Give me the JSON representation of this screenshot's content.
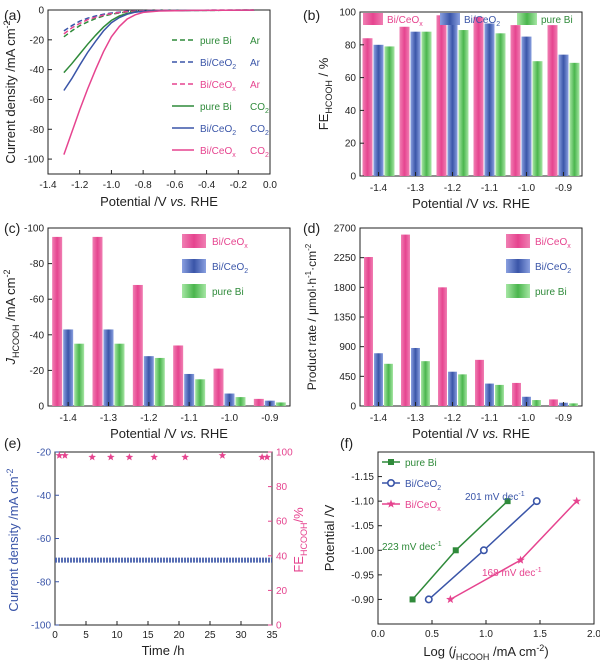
{
  "colors": {
    "bi": "#2f8a3a",
    "bice2": "#3a55a8",
    "bicex": "#e6448f",
    "fe": "#e6448f",
    "axis": "#222222",
    "gray": "#c8c8c8"
  },
  "chart_data": [
    {
      "panel": "(a)",
      "type": "line",
      "xlabel_parts": [
        "Potential /V ",
        "vs.",
        " RHE"
      ],
      "ylabel_parts": [
        "Current density /mA cm",
        "-2"
      ],
      "xlim": [
        -1.4,
        0.0
      ],
      "ylim": [
        -110,
        0
      ],
      "xticks": [
        -1.4,
        -1.2,
        -1.0,
        -0.8,
        -0.6,
        -0.4,
        -0.2,
        0.0
      ],
      "xtick_labels": [
        "-1.4",
        "-1.2",
        "-1.0",
        "-0.8",
        "-0.6",
        "-0.4",
        "-0.2",
        "0.0"
      ],
      "yticks": [
        -100,
        -80,
        -60,
        -40,
        -20,
        0
      ],
      "ytick_labels": [
        "-100",
        "-80",
        "-60",
        "-40",
        "-20",
        "0"
      ],
      "legend_position": "right",
      "series": [
        {
          "name": "pure Bi",
          "gas": "Ar",
          "style": "dashed",
          "color_key": "bi",
          "legend_label": "pure Bi Ar",
          "x": [
            -1.3,
            -1.25,
            -1.2,
            -1.15,
            -1.1,
            -1.05,
            -1.0,
            -0.9,
            -0.8,
            -0.7,
            -0.5,
            -0.3,
            -0.1
          ],
          "y": [
            -18,
            -14,
            -10.5,
            -8,
            -5.8,
            -4,
            -2.8,
            -1.2,
            -0.6,
            -0.4,
            -0.3,
            -0.2,
            -0.1
          ]
        },
        {
          "name": "Bi/CeO2",
          "gas": "Ar",
          "style": "dashed",
          "color_key": "bice2",
          "legend_label": "Bi/CeO2 Ar",
          "x": [
            -1.3,
            -1.25,
            -1.2,
            -1.15,
            -1.1,
            -1.05,
            -1.0,
            -0.9,
            -0.8,
            -0.7,
            -0.5,
            -0.3,
            -0.1
          ],
          "y": [
            -14,
            -10.5,
            -7.5,
            -5.5,
            -4,
            -2.8,
            -2,
            -0.9,
            -0.5,
            -0.3,
            -0.2,
            -0.1,
            -0.1
          ]
        },
        {
          "name": "Bi/CeOx",
          "gas": "Ar",
          "style": "dashed",
          "color_key": "bicex",
          "legend_label": "Bi/CeOx Ar",
          "x": [
            -1.3,
            -1.25,
            -1.2,
            -1.15,
            -1.1,
            -1.05,
            -1.0,
            -0.9,
            -0.8,
            -0.7,
            -0.5,
            -0.3,
            -0.1
          ],
          "y": [
            -16,
            -12,
            -9,
            -6.5,
            -4.8,
            -3.4,
            -2.4,
            -1,
            -0.5,
            -0.3,
            -0.2,
            -0.1,
            -0.1
          ]
        },
        {
          "name": "pure Bi",
          "gas": "CO2",
          "style": "solid",
          "color_key": "bi",
          "legend_label": "pure Bi CO2",
          "x": [
            -1.3,
            -1.25,
            -1.2,
            -1.15,
            -1.1,
            -1.05,
            -1.0,
            -0.95,
            -0.9,
            -0.85,
            -0.8,
            -0.7,
            -0.6,
            -0.5,
            -0.3,
            -0.1
          ],
          "y": [
            -42,
            -36,
            -29.5,
            -23,
            -17,
            -11.5,
            -7,
            -4,
            -2.2,
            -1.3,
            -0.8,
            -0.5,
            -0.4,
            -0.3,
            -0.2,
            -0.1
          ]
        },
        {
          "name": "Bi/CeO2",
          "gas": "CO2",
          "style": "solid",
          "color_key": "bice2",
          "legend_label": "Bi/CeO2 CO2",
          "x": [
            -1.3,
            -1.25,
            -1.2,
            -1.15,
            -1.1,
            -1.05,
            -1.0,
            -0.95,
            -0.9,
            -0.85,
            -0.8,
            -0.7,
            -0.6,
            -0.5,
            -0.3,
            -0.1
          ],
          "y": [
            -54,
            -46,
            -37,
            -28.5,
            -21,
            -14,
            -8.5,
            -5,
            -2.8,
            -1.5,
            -0.9,
            -0.5,
            -0.4,
            -0.3,
            -0.2,
            -0.1
          ]
        },
        {
          "name": "Bi/CeOx",
          "gas": "CO2",
          "style": "solid",
          "color_key": "bicex",
          "legend_label": "Bi/CeOx CO2",
          "x": [
            -1.3,
            -1.25,
            -1.2,
            -1.15,
            -1.1,
            -1.05,
            -1.0,
            -0.95,
            -0.9,
            -0.85,
            -0.8,
            -0.7,
            -0.6,
            -0.5,
            -0.3,
            -0.1
          ],
          "y": [
            -97,
            -82,
            -67,
            -53,
            -40,
            -28,
            -18,
            -11,
            -6,
            -3.2,
            -1.6,
            -0.7,
            -0.5,
            -0.3,
            -0.2,
            -0.1
          ]
        }
      ]
    },
    {
      "panel": "(b)",
      "type": "bar",
      "xlabel_parts": [
        "Potential /V ",
        "vs.",
        " RHE"
      ],
      "ylabel_parts": [
        "FE",
        "HCOOH",
        " / %"
      ],
      "categories": [
        "-1.4",
        "-1.3",
        "-1.2",
        "-1.1",
        "-1.0",
        "-0.9"
      ],
      "ylim": [
        0,
        100
      ],
      "yticks": [
        0,
        20,
        40,
        60,
        80,
        100
      ],
      "ytick_labels": [
        "0",
        "20",
        "40",
        "60",
        "80",
        "100"
      ],
      "legend_position": "top",
      "series": [
        {
          "name": "Bi/CeOx",
          "color_key": "bicex",
          "values": [
            84,
            91,
            98,
            97,
            92,
            92
          ]
        },
        {
          "name": "Bi/CeO2",
          "color_key": "bice2",
          "values": [
            80,
            88,
            96,
            93,
            85,
            74
          ]
        },
        {
          "name": "pure Bi",
          "color_key": "bi",
          "values": [
            79,
            88,
            89,
            87,
            70,
            69
          ]
        }
      ]
    },
    {
      "panel": "(c)",
      "type": "bar",
      "xlabel_parts": [
        "Potential /V ",
        "vs.",
        " RHE"
      ],
      "ylabel_parts": [
        "J",
        "HCOOH",
        " /mA cm",
        "-2"
      ],
      "categories": [
        "-1.4",
        "-1.3",
        "-1.2",
        "-1.1",
        "-1.0",
        "-0.9"
      ],
      "ylim": [
        0,
        -100
      ],
      "yticks": [
        0,
        -20,
        -40,
        -60,
        -80,
        -100
      ],
      "ytick_labels": [
        "0",
        "-20",
        "-40",
        "-60",
        "-80",
        "-100"
      ],
      "legend_position": "right",
      "series": [
        {
          "name": "Bi/CeOx",
          "color_key": "bicex",
          "values": [
            -95,
            -95,
            -68,
            -34,
            -21,
            -4
          ]
        },
        {
          "name": "Bi/CeO2",
          "color_key": "bice2",
          "values": [
            -43,
            -43,
            -28,
            -18,
            -7,
            -3
          ]
        },
        {
          "name": "pure Bi",
          "color_key": "bi",
          "values": [
            -35,
            -35,
            -27,
            -15,
            -5,
            -2
          ]
        }
      ]
    },
    {
      "panel": "(d)",
      "type": "bar",
      "xlabel_parts": [
        "Potential /V ",
        "vs.",
        " RHE"
      ],
      "ylabel_parts": [
        "Product rate / μmol·h",
        "-1",
        "·cm",
        "-2"
      ],
      "categories": [
        "-1.4",
        "-1.3",
        "-1.2",
        "-1.1",
        "-1.0",
        "-0.9"
      ],
      "ylim": [
        0,
        2700
      ],
      "yticks": [
        0,
        450,
        900,
        1350,
        1800,
        2250,
        2700
      ],
      "ytick_labels": [
        "0",
        "450",
        "900",
        "1350",
        "1800",
        "2250",
        "2700"
      ],
      "legend_position": "right",
      "series": [
        {
          "name": "Bi/CeOx",
          "color_key": "bicex",
          "values": [
            2260,
            2600,
            1800,
            700,
            350,
            100
          ]
        },
        {
          "name": "Bi/CeO2",
          "color_key": "bice2",
          "values": [
            800,
            880,
            520,
            340,
            140,
            50
          ]
        },
        {
          "name": "pure Bi",
          "color_key": "bi",
          "values": [
            640,
            680,
            480,
            320,
            90,
            40
          ]
        }
      ]
    },
    {
      "panel": "(e)",
      "type": "line",
      "xlabel": "Time /h",
      "ylabel_parts": [
        "Current density /mA cm",
        "-2"
      ],
      "y2label_parts": [
        "FE",
        "HCOOH",
        "/%"
      ],
      "xlim": [
        0,
        35
      ],
      "ylim": [
        -100,
        -20
      ],
      "y2lim": [
        0,
        100
      ],
      "xticks": [
        0,
        5,
        10,
        15,
        20,
        25,
        30,
        35
      ],
      "xtick_labels": [
        "0",
        "5",
        "10",
        "15",
        "20",
        "25",
        "30",
        "35"
      ],
      "yticks": [
        -100,
        -80,
        -60,
        -40,
        -20
      ],
      "ytick_labels": [
        "-100",
        "-80",
        "-60",
        "-40",
        "-20"
      ],
      "y2ticks": [
        0,
        20,
        40,
        60,
        80,
        100
      ],
      "y2tick_labels": [
        "0",
        "20",
        "40",
        "60",
        "80",
        "100"
      ],
      "current": {
        "color_key": "bice2",
        "x_start": 0,
        "x_end": 35,
        "value": -70
      },
      "fe_points": {
        "color_key": "fe",
        "x": [
          0.7,
          1.6,
          6,
          9,
          12,
          16,
          21,
          27,
          33.4,
          34.2
        ],
        "y": [
          98,
          98,
          97,
          97,
          97,
          97,
          97,
          98,
          97,
          97
        ]
      }
    },
    {
      "panel": "(f)",
      "type": "scatter",
      "xlabel_parts": [
        "Log (",
        "j",
        "HCOOH",
        " /mA cm",
        "-2",
        ")"
      ],
      "ylabel": "Potential /V",
      "xlim": [
        0.0,
        2.0
      ],
      "ylim": [
        -0.85,
        -1.2
      ],
      "xticks": [
        0.0,
        0.5,
        1.0,
        1.5,
        2.0
      ],
      "xtick_labels": [
        "0.0",
        "0.5",
        "1.0",
        "1.5",
        "2.0"
      ],
      "yticks": [
        -0.9,
        -0.95,
        -1.0,
        -1.05,
        -1.1,
        -1.15
      ],
      "ytick_labels": [
        "-0.90",
        "-0.95",
        "-1.00",
        "-1.05",
        "-1.10",
        "-1.15"
      ],
      "legend_position": "top-left",
      "series": [
        {
          "name": "pure Bi",
          "color_key": "bi",
          "marker": "square",
          "x": [
            0.32,
            0.72,
            1.2
          ],
          "y": [
            -0.9,
            -1.0,
            -1.1
          ],
          "slope_label_parts": [
            "223 mV dec",
            "-1"
          ]
        },
        {
          "name": "Bi/CeO2",
          "color_key": "bice2",
          "marker": "circle",
          "x": [
            0.47,
            0.98,
            1.47
          ],
          "y": [
            -0.9,
            -1.0,
            -1.1
          ],
          "slope_label_parts": [
            "201 mV dec",
            "-1"
          ]
        },
        {
          "name": "Bi/CeOx",
          "color_key": "bicex",
          "marker": "star",
          "x": [
            0.67,
            1.32,
            1.84
          ],
          "y": [
            -0.9,
            -0.98,
            -1.1
          ],
          "slope_label_parts": [
            "168 mV dec",
            "-1"
          ]
        }
      ]
    }
  ],
  "legends": {
    "a": {
      "labels": [
        {
          "parts": [
            "pure Bi",
            "",
            "",
            "Ar"
          ]
        },
        {
          "parts": [
            "Bi/CeO",
            "2",
            "",
            "Ar"
          ]
        },
        {
          "parts": [
            "Bi/CeO",
            "",
            "x",
            "Ar"
          ]
        },
        {
          "parts": [
            "pure Bi",
            "",
            "",
            "CO",
            "2"
          ]
        },
        {
          "parts": [
            "Bi/CeO",
            "2",
            "",
            "CO",
            "2"
          ]
        },
        {
          "parts": [
            "Bi/CeO",
            "",
            "x",
            "CO",
            "2"
          ]
        }
      ]
    },
    "bars": [
      {
        "parts": [
          "Bi/CeO",
          "x"
        ],
        "color_key": "bicex"
      },
      {
        "parts": [
          "Bi/CeO",
          "2"
        ],
        "color_key": "bice2"
      },
      {
        "parts": [
          "pure Bi",
          ""
        ],
        "color_key": "bi"
      }
    ],
    "f": [
      {
        "parts": [
          "pure Bi",
          ""
        ]
      },
      {
        "parts": [
          "Bi/CeO",
          "2"
        ]
      },
      {
        "parts": [
          "Bi/CeO",
          "x"
        ]
      }
    ]
  }
}
